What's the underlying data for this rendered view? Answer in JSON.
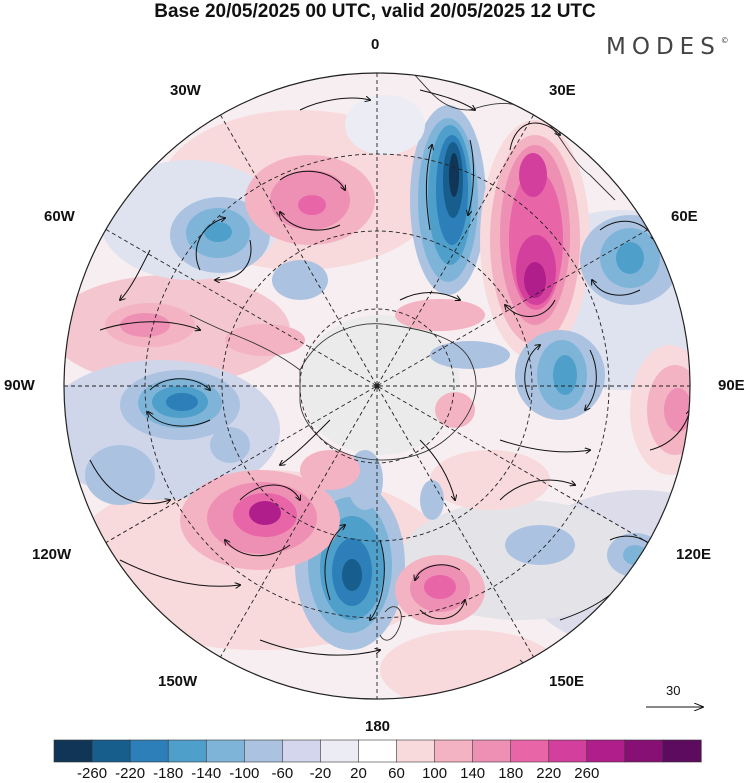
{
  "header": {
    "title": "Base 20/05/2025 00 UTC, valid 20/05/2025 12 UTC",
    "brand": "MODES",
    "brand_mark": "©"
  },
  "map": {
    "projection": "south-polar-stereographic",
    "longitude_labels": {
      "top": "0",
      "top_right": "30E",
      "right_upper": "60E",
      "right": "90E",
      "right_lower": "120E",
      "bottom_right": "150E",
      "bottom": "180",
      "bottom_left": "150W",
      "left_lower": "120W",
      "left": "90W",
      "left_upper": "60W",
      "top_left": "30W"
    },
    "wind_vector_scale": "30",
    "anomaly_centers": [
      {
        "sign": "negative",
        "approx_value": -260,
        "region": "south of Africa, near 10E"
      },
      {
        "sign": "positive",
        "approx_value": 220,
        "region": "south of Africa, near 30E"
      },
      {
        "sign": "negative",
        "approx_value": -180,
        "region": "South Pacific near 170W"
      },
      {
        "sign": "positive",
        "approx_value": 220,
        "region": "South Pacific near 130W"
      },
      {
        "sign": "positive",
        "approx_value": 140,
        "region": "near 160E"
      },
      {
        "sign": "negative",
        "approx_value": -180,
        "region": "Bellingshausen Sea near 90W"
      },
      {
        "sign": "positive",
        "approx_value": 100,
        "region": "Indian Ocean near 90E"
      },
      {
        "sign": "negative",
        "approx_value": -140,
        "region": "Indian Ocean near 75E"
      },
      {
        "sign": "negative",
        "approx_value": -140,
        "region": "near 55E"
      },
      {
        "sign": "positive",
        "approx_value": 100,
        "region": "South Atlantic near 20W"
      },
      {
        "sign": "negative",
        "approx_value": -100,
        "region": "South Atlantic near 50W"
      }
    ]
  },
  "colorbar": {
    "ticks": [
      "-260",
      "-220",
      "-180",
      "-140",
      "-100",
      "-60",
      "-20",
      "20",
      "60",
      "100",
      "140",
      "180",
      "220",
      "260"
    ],
    "colors": [
      "#103556",
      "#175e8d",
      "#2c7fb8",
      "#4f9fcb",
      "#7fb4d9",
      "#abc3e1",
      "#d3d6ec",
      "#ececf4",
      "#ffffff",
      "#f8d9dc",
      "#f4b3c2",
      "#ee8fb4",
      "#e866a8",
      "#d33f9c",
      "#b01e8c",
      "#871075",
      "#5c0b5e"
    ]
  }
}
